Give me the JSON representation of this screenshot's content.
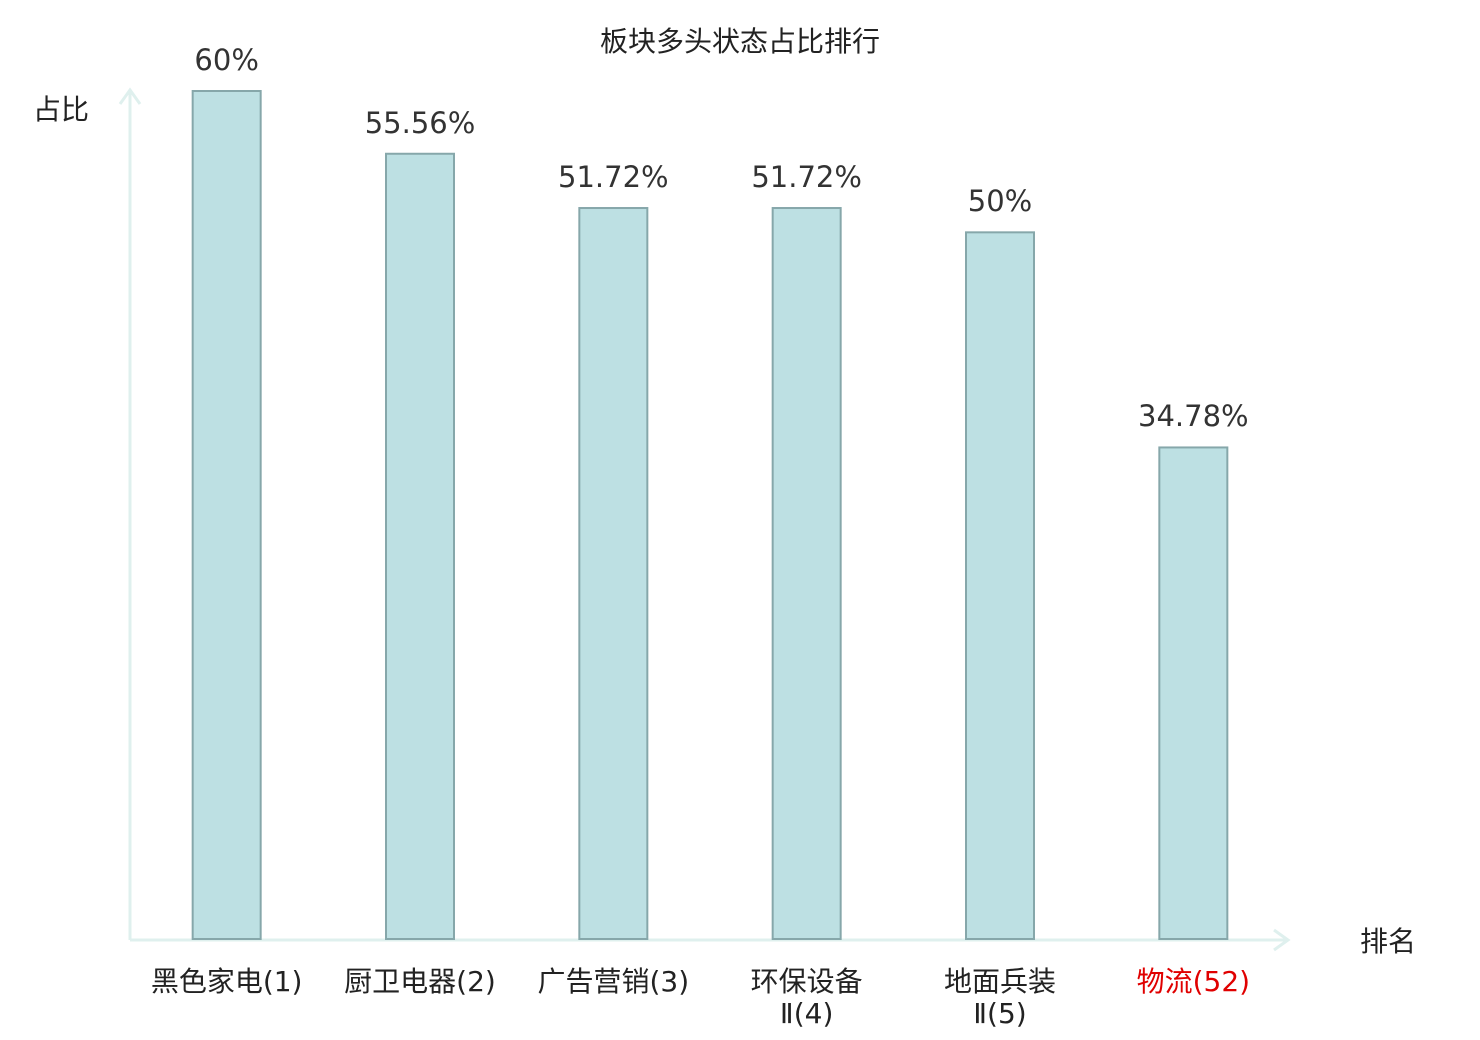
{
  "chart_data": {
    "type": "bar",
    "title": "板块多头状态占比排行",
    "y_label": "占比",
    "x_label": "排名",
    "categories": [
      "黑色家电(1)",
      "厨卫电器(2)",
      "广告营销(3)",
      "环保设备Ⅱ(4)",
      "地面兵装Ⅱ(5)",
      "物流(52)"
    ],
    "values": [
      60,
      55.56,
      51.72,
      51.72,
      50,
      34.78
    ],
    "value_labels": [
      "60%",
      "55.56%",
      "51.72%",
      "51.72%",
      "50%",
      "34.78%"
    ],
    "color": "#bde0e3",
    "edge_color": "#86a7aa",
    "label_colors": [
      "#222222",
      "#222222",
      "#222222",
      "#222222",
      "#222222",
      "#e00000"
    ],
    "ylim": [
      0,
      60
    ]
  }
}
